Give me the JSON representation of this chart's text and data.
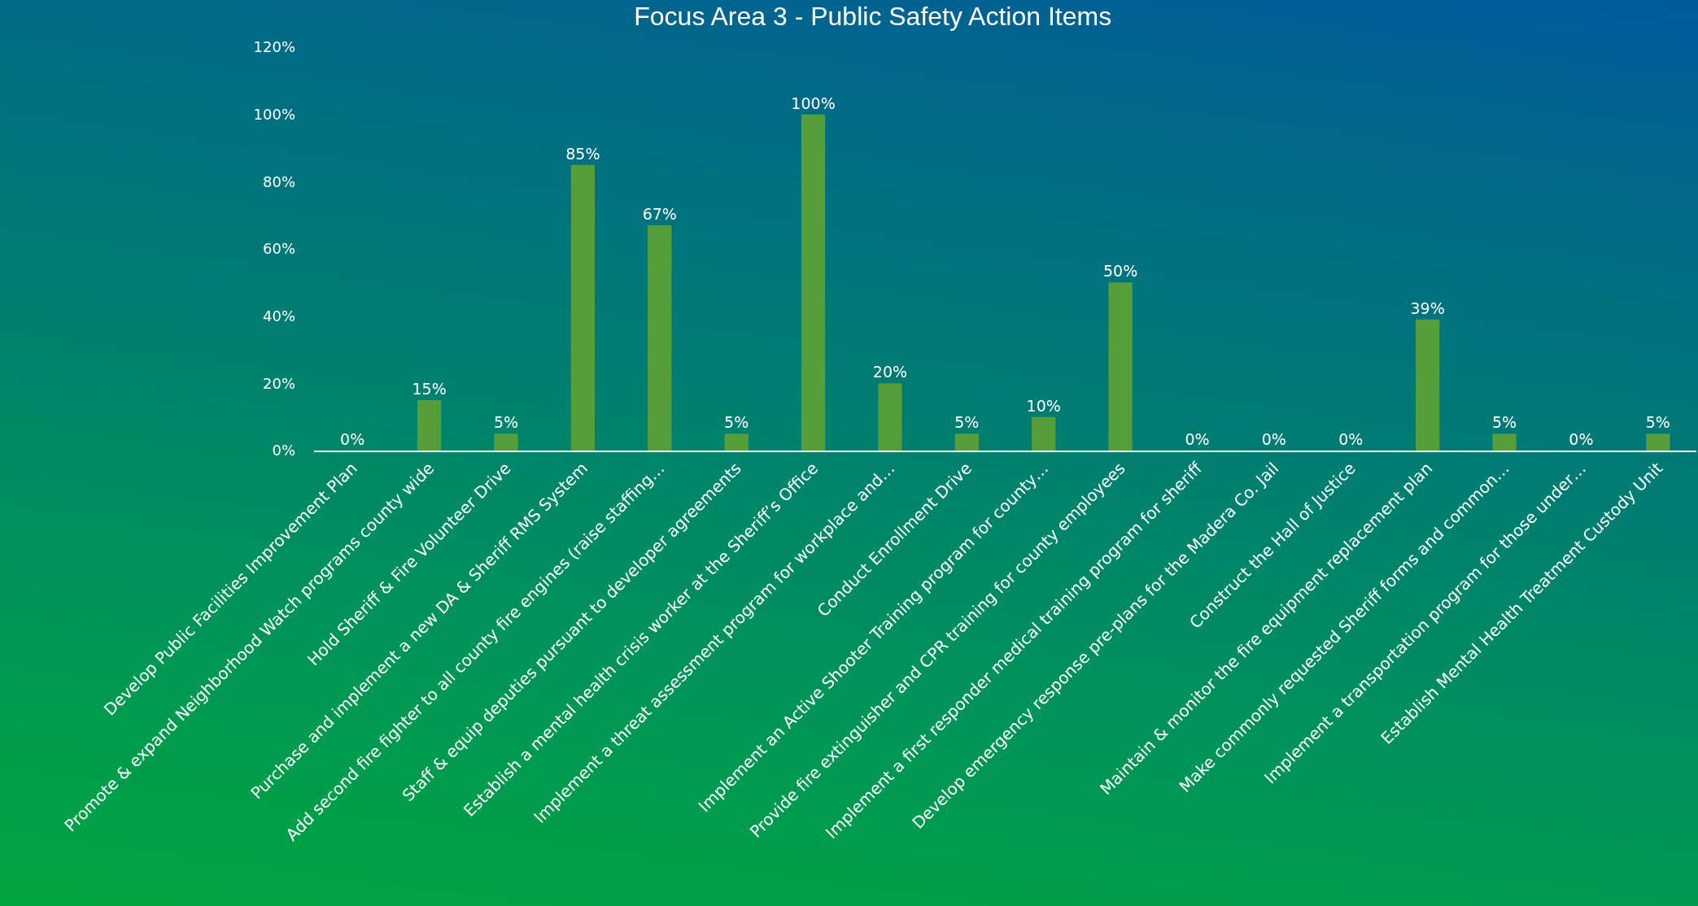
{
  "chart_data": {
    "type": "bar",
    "title": "Focus Area 3 - Public Safety Action Items",
    "categories": [
      "Develop Public Facilities Improvement Plan",
      "Promote & expand Neighborhood Watch programs county wide",
      "Hold Sheriff & Fire Volunteer Drive",
      "Purchase and implement a new DA & Sheriff RMS System",
      "Add second fire fighter to all county fire engines (raise staffing…",
      "Staff & equip deputies pursuant to developer agreements",
      "Establish a mental health crisis worker at the Sheriff’s Office",
      "Implement a threat assessment program for workplace and…",
      "Conduct Enrollment Drive",
      "Implement an Active Shooter Training program for county…",
      "Provide fire extinguisher and CPR training for county employees",
      "Implement a first responder medical training program for sheriff",
      "Develop emergency response pre-plans for the Madera Co. Jail",
      "Construct the Hall of Justice",
      "Maintain & monitor the fire equipment replacement plan",
      "Make commonly requested Sheriff forms and common…",
      "Implement a transportation program for those under…",
      "Establish Mental Health Treatment Custody Unit"
    ],
    "values": [
      0,
      15,
      5,
      85,
      67,
      5,
      100,
      20,
      5,
      10,
      50,
      0,
      0,
      0,
      39,
      5,
      0,
      5
    ],
    "value_labels": [
      "0%",
      "15%",
      "5%",
      "85%",
      "67%",
      "5%",
      "100%",
      "20%",
      "5%",
      "10%",
      "50%",
      "0%",
      "0%",
      "0%",
      "39%",
      "5%",
      "0%",
      "5%"
    ],
    "color": "#559e3a",
    "ylim": [
      0,
      120
    ],
    "yticks": [
      {
        "value": 0,
        "label": "0%"
      },
      {
        "value": 20,
        "label": "20%"
      },
      {
        "value": 40,
        "label": "40%"
      },
      {
        "value": 60,
        "label": "60%"
      },
      {
        "value": 80,
        "label": "80%"
      },
      {
        "value": 100,
        "label": "100%"
      },
      {
        "value": 120,
        "label": "120%"
      }
    ]
  }
}
